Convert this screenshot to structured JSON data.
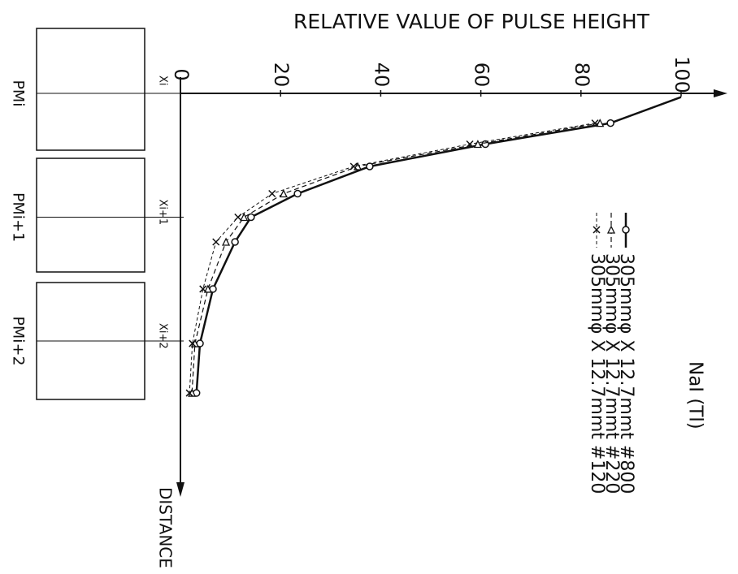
{
  "chart_data": {
    "type": "line",
    "title": "RELATIVE VALUE OF PULSE HEIGHT",
    "x_label": "DISTANCE",
    "legend_title": "NaI (Tl)",
    "annotations": [
      "PMi",
      "PMi+1",
      "PMi+2"
    ],
    "x": [
      0.03,
      0.24,
      0.41,
      0.59,
      0.81,
      1.0,
      1.2,
      1.58,
      2.02,
      2.42
    ],
    "xlim": [
      0,
      3.2
    ],
    "xticks": [
      {
        "value": 0,
        "label": "Xi"
      },
      {
        "value": 1,
        "label": "Xi+1"
      },
      {
        "value": 2,
        "label": "Xi+2"
      }
    ],
    "ylim": [
      0,
      100
    ],
    "yticks": [
      0,
      20,
      40,
      60,
      80,
      100
    ],
    "series": [
      {
        "name": "305mmφ X 12.7mmt #800",
        "color": "#111111",
        "values": [
          100,
          85.9,
          60.9,
          37.8,
          23.4,
          14.1,
          10.9,
          6.5,
          3.9,
          3.2
        ]
      },
      {
        "name": "305mmφ X 12.7mmt #220",
        "color": "#111111",
        "values": [
          null,
          83.8,
          59.4,
          35.4,
          20.6,
          12.7,
          9.1,
          5.5,
          2.9,
          2.3
        ]
      },
      {
        "name": "305mmφ X 12.7mmt #120",
        "color": "#111111",
        "values": [
          null,
          82.8,
          57.8,
          34.6,
          18.3,
          11.5,
          7.1,
          4.5,
          2.4,
          1.8
        ]
      }
    ]
  }
}
